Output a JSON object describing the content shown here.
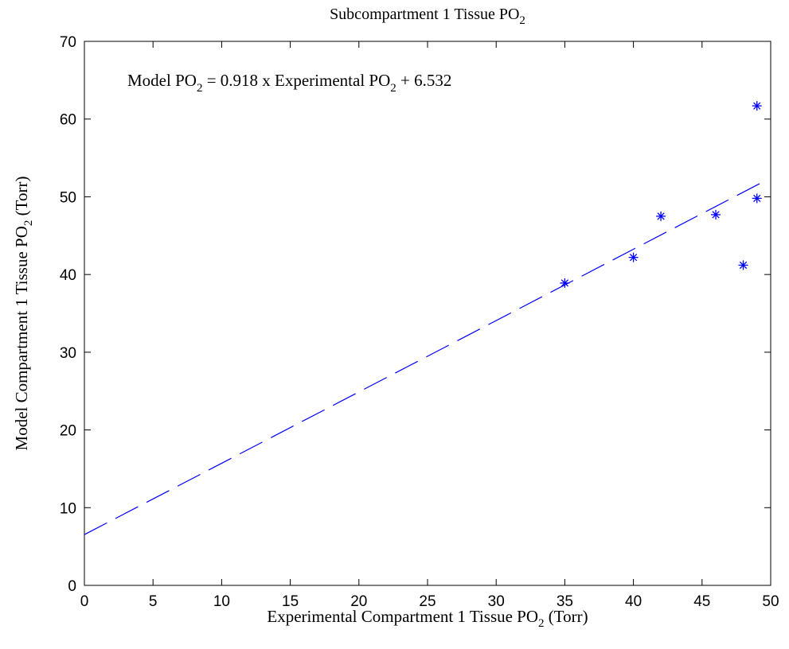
{
  "chart_data": {
    "type": "scatter",
    "title": {
      "main": "Subcompartment 1 Tissue PO",
      "sub": "2"
    },
    "xlabel": {
      "pre": "Experimental Compartment 1 Tissue PO",
      "sub": "2",
      "post": " (Torr)"
    },
    "ylabel": {
      "pre": "Model Compartment 1 Tissue PO",
      "sub": "2",
      "post": " (Torr)"
    },
    "annotation": {
      "parts": [
        {
          "text": "Model  PO",
          "sub": false
        },
        {
          "text": "2",
          "sub": true
        },
        {
          "text": " = 0.918 x Experimental  PO",
          "sub": false
        },
        {
          "text": "2",
          "sub": true
        },
        {
          "text": " + 6.532",
          "sub": false
        }
      ]
    },
    "xlim": [
      0,
      50
    ],
    "ylim": [
      0,
      70
    ],
    "xticks": [
      0,
      5,
      10,
      15,
      20,
      25,
      30,
      35,
      40,
      45,
      50
    ],
    "yticks": [
      0,
      10,
      20,
      30,
      40,
      50,
      60,
      70
    ],
    "grid": false,
    "series": [
      {
        "marker": "asterisk",
        "color": "#0000ff",
        "points": [
          {
            "x": 35,
            "y": 38.9
          },
          {
            "x": 40,
            "y": 42.2
          },
          {
            "x": 42,
            "y": 47.5
          },
          {
            "x": 46,
            "y": 47.7
          },
          {
            "x": 48,
            "y": 41.2
          },
          {
            "x": 49,
            "y": 49.8
          },
          {
            "x": 49,
            "y": 61.7
          }
        ]
      }
    ],
    "fit_line": {
      "style": "dashed",
      "color": "#0000ff",
      "slope": 0.918,
      "intercept": 6.532,
      "x_range": [
        0,
        49.5
      ]
    }
  }
}
